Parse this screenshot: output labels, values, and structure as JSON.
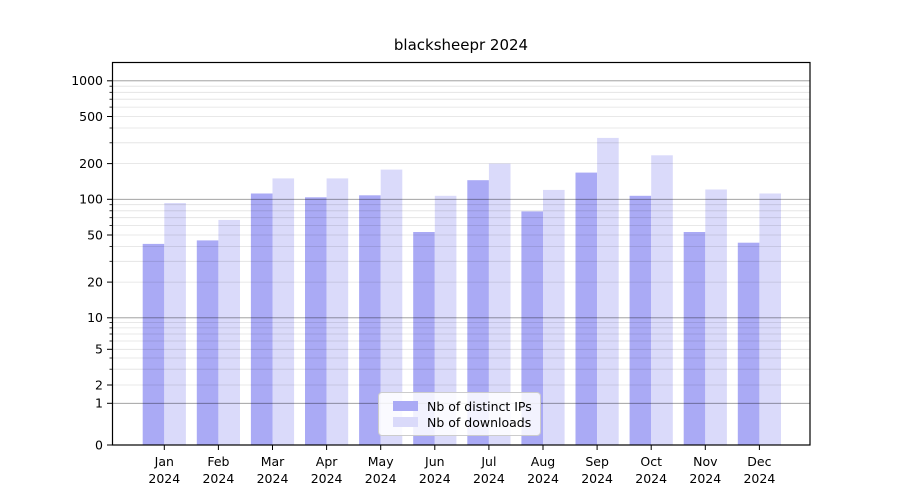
{
  "chart_data": {
    "type": "bar",
    "title": "blacksheepr 2024",
    "scale": "symlog",
    "grid": true,
    "categories": [
      "Jan",
      "Feb",
      "Mar",
      "Apr",
      "May",
      "Jun",
      "Jul",
      "Aug",
      "Sep",
      "Oct",
      "Nov",
      "Dec"
    ],
    "x_sublabel": "2024",
    "series": [
      {
        "name": "Nb of distinct IPs",
        "color": "#aaaaf5",
        "values": [
          42,
          45,
          112,
          104,
          108,
          53,
          145,
          79,
          168,
          107,
          53,
          43
        ]
      },
      {
        "name": "Nb of downloads",
        "color": "#dadafa",
        "values": [
          93,
          67,
          150,
          150,
          178,
          107,
          200,
          120,
          330,
          235,
          121,
          112
        ]
      }
    ],
    "yticks": [
      0,
      1,
      2,
      5,
      10,
      20,
      50,
      100,
      200,
      500,
      1000
    ],
    "ylim": [
      0,
      1400
    ],
    "legend_position": "lower center",
    "colors": {
      "major_grid": "rgba(0,0,0,0.42)",
      "minor_grid": "rgba(0,0,0,0.12)",
      "spine": "#000000",
      "text": "#000000"
    }
  }
}
